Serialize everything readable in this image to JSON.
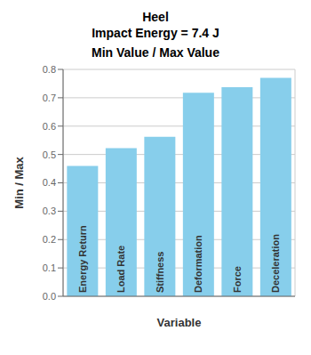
{
  "chart_data": {
    "type": "bar",
    "title": "Heel\nImpact Energy = 7.4 J",
    "subtitle": "Min Value / Max Value",
    "xlabel": "Variable",
    "ylabel": "Min / Max",
    "categories": [
      "Energy Return",
      "Load Rate",
      "Stiffness",
      "Deformation",
      "Force",
      "Deceleration"
    ],
    "values": [
      0.46,
      0.522,
      0.562,
      0.718,
      0.737,
      0.77
    ],
    "color": "#87CEEB",
    "ylim": [
      0,
      0.8
    ],
    "yticks": [
      {
        "value": 0,
        "label": "0.0"
      },
      0.1,
      0.2,
      0.3,
      0.4,
      0.5,
      0.6,
      0.7,
      0.8
    ],
    "grid": true,
    "tick_labels": "y"
  }
}
